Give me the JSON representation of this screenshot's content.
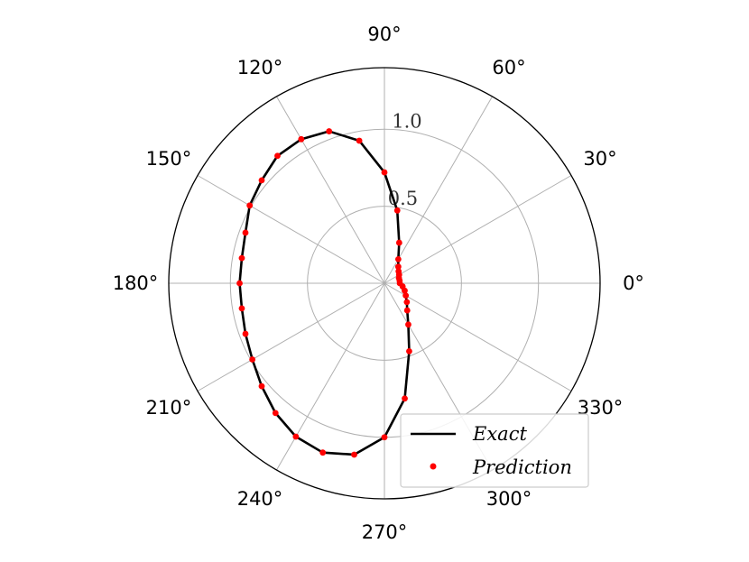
{
  "chart_data": {
    "type": "scatter",
    "projection": "polar",
    "title": "",
    "angle_unit": "degrees",
    "angle_ticks": [
      "0°",
      "30°",
      "60°",
      "90°",
      "120°",
      "150°",
      "180°",
      "210°",
      "240°",
      "270°",
      "300°",
      "330°"
    ],
    "radial_ticks": [
      "0.5",
      "1.0"
    ],
    "rlim": [
      0,
      1.4
    ],
    "grid": true,
    "legend_position": "lower-right",
    "colors": {
      "exact": "#000000",
      "prediction": "#ff0000",
      "grid": "#b0b0b0"
    },
    "series": [
      {
        "name": "Exact",
        "style": "line",
        "theta": [
          0,
          10,
          20,
          30,
          40,
          50,
          60,
          70,
          80,
          90,
          100,
          110,
          120,
          130,
          140,
          150,
          160,
          170,
          180,
          190,
          200,
          210,
          220,
          230,
          240,
          250,
          260,
          270,
          280,
          290,
          300,
          310,
          320,
          330,
          340,
          350,
          360
        ],
        "r": [
          0.1,
          0.1,
          0.1,
          0.11,
          0.12,
          0.14,
          0.18,
          0.28,
          0.48,
          0.72,
          0.94,
          1.05,
          1.08,
          1.08,
          1.04,
          1.01,
          0.96,
          0.94,
          0.94,
          0.94,
          0.96,
          0.99,
          1.04,
          1.1,
          1.15,
          1.17,
          1.13,
          1.0,
          0.76,
          0.47,
          0.31,
          0.23,
          0.19,
          0.16,
          0.14,
          0.12,
          0.1
        ]
      },
      {
        "name": "Prediction",
        "style": "markers",
        "theta": [
          0,
          10,
          20,
          30,
          40,
          50,
          60,
          70,
          80,
          90,
          100,
          110,
          120,
          130,
          140,
          150,
          160,
          170,
          180,
          190,
          200,
          210,
          220,
          230,
          240,
          250,
          260,
          270,
          280,
          290,
          300,
          310,
          320,
          330,
          340,
          350
        ],
        "r": [
          0.1,
          0.1,
          0.1,
          0.11,
          0.12,
          0.14,
          0.18,
          0.28,
          0.48,
          0.72,
          0.94,
          1.05,
          1.08,
          1.08,
          1.04,
          1.01,
          0.96,
          0.94,
          0.94,
          0.94,
          0.96,
          0.99,
          1.04,
          1.1,
          1.15,
          1.17,
          1.13,
          1.0,
          0.76,
          0.47,
          0.31,
          0.23,
          0.19,
          0.16,
          0.14,
          0.12
        ]
      }
    ]
  },
  "legend": {
    "exact_label": "Exact",
    "prediction_label": "Prediction"
  }
}
